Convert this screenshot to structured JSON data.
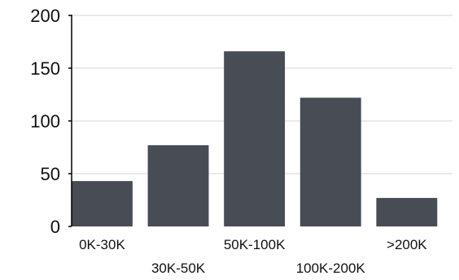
{
  "chart_data": {
    "type": "bar",
    "categories": [
      "0K-30K",
      "30K-50K",
      "50K-100K",
      "100K-200K",
      ">200K"
    ],
    "values": [
      43,
      77,
      166,
      122,
      27
    ],
    "ylim": [
      0,
      200
    ],
    "yticks": [
      0,
      50,
      100,
      150,
      200
    ],
    "grid": true,
    "bar_color": "#474c55",
    "grid_color": "#e3e3e3",
    "axis_color": "#000000"
  }
}
